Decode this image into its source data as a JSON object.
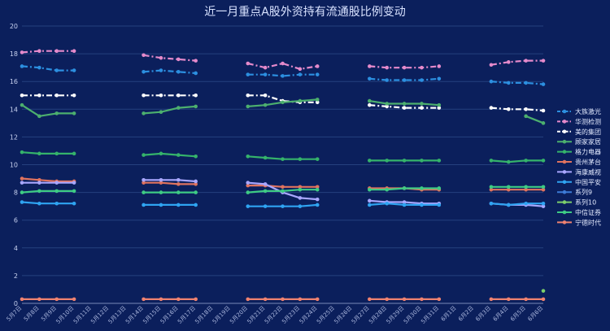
{
  "chart_data": {
    "type": "line",
    "title": "近一月重点A股外资持有流通股比例变动",
    "xlabel": "",
    "ylabel": "",
    "ylim": [
      0,
      20
    ],
    "y_ticks": [
      0,
      2,
      4,
      6,
      8,
      10,
      12,
      14,
      16,
      18,
      20
    ],
    "grid": true,
    "legend_position": "right",
    "x": [
      "5月7日",
      "5月8日",
      "5月9日",
      "5月10日",
      "5月11日",
      "5月12日",
      "5月13日",
      "5月14日",
      "5月15日",
      "5月16日",
      "5月17日",
      "5月18日",
      "5月19日",
      "5月20日",
      "5月21日",
      "5月22日",
      "5月23日",
      "5月24日",
      "5月25日",
      "5月26日",
      "5月27日",
      "5月28日",
      "5月29日",
      "5月30日",
      "5月31日",
      "6月1日",
      "6月2日",
      "6月3日",
      "6月4日",
      "6月5日",
      "6月6日"
    ],
    "series": [
      {
        "name": "大族激光",
        "color": "#2c8fe0",
        "dash": "dashdot",
        "values": [
          17.1,
          17.0,
          16.8,
          16.8,
          null,
          null,
          null,
          16.7,
          16.8,
          16.7,
          16.6,
          null,
          null,
          16.5,
          16.5,
          16.4,
          16.5,
          16.5,
          null,
          null,
          16.2,
          16.1,
          16.1,
          16.1,
          16.2,
          null,
          null,
          16.0,
          15.9,
          15.9,
          15.8
        ]
      },
      {
        "name": "华测检测",
        "color": "#e58acb",
        "dash": "dashdot",
        "values": [
          18.1,
          18.2,
          18.2,
          18.2,
          null,
          null,
          null,
          17.9,
          17.7,
          17.6,
          17.5,
          null,
          null,
          17.3,
          17.0,
          17.3,
          16.9,
          17.1,
          null,
          null,
          17.1,
          17.0,
          17.0,
          17.0,
          17.1,
          null,
          null,
          17.2,
          17.4,
          17.5,
          17.5
        ]
      },
      {
        "name": "美的集团",
        "color": "#ffffff",
        "dash": "dashdot",
        "values": [
          15.0,
          15.0,
          15.0,
          15.0,
          null,
          null,
          null,
          15.0,
          15.0,
          15.0,
          15.0,
          null,
          null,
          15.0,
          15.0,
          14.6,
          14.5,
          14.5,
          null,
          null,
          14.3,
          14.2,
          14.1,
          14.1,
          14.1,
          null,
          null,
          14.1,
          14.0,
          14.0,
          13.9
        ]
      },
      {
        "name": "顾家家居",
        "color": "#4caf6e",
        "dash": "solid",
        "values": [
          14.3,
          13.5,
          13.7,
          13.7,
          null,
          null,
          null,
          13.7,
          13.8,
          14.1,
          14.2,
          null,
          null,
          14.2,
          14.3,
          14.5,
          14.6,
          14.7,
          null,
          null,
          14.6,
          14.4,
          14.4,
          14.4,
          14.3,
          null,
          null,
          null,
          null,
          13.5,
          13.0
        ]
      },
      {
        "name": "格力电器",
        "color": "#35b36b",
        "dash": "solid",
        "values": [
          10.9,
          10.8,
          10.8,
          10.8,
          null,
          null,
          null,
          10.7,
          10.8,
          10.7,
          10.6,
          null,
          null,
          10.6,
          10.5,
          10.4,
          10.4,
          10.4,
          null,
          null,
          10.3,
          10.3,
          10.3,
          10.3,
          10.3,
          null,
          null,
          10.3,
          10.2,
          10.3,
          10.3
        ]
      },
      {
        "name": "贵州茅台",
        "color": "#e0735f",
        "dash": "solid",
        "values": [
          9.0,
          8.9,
          8.8,
          8.8,
          null,
          null,
          null,
          8.7,
          8.7,
          8.6,
          8.6,
          null,
          null,
          8.5,
          8.5,
          8.4,
          8.4,
          8.4,
          null,
          null,
          8.3,
          8.3,
          8.3,
          8.2,
          8.2,
          null,
          null,
          8.2,
          8.2,
          8.2,
          8.2
        ]
      },
      {
        "name": "海康威视",
        "color": "#a9a7ff",
        "dash": "solid",
        "values": [
          8.7,
          8.7,
          8.7,
          8.7,
          null,
          null,
          null,
          8.9,
          8.9,
          8.9,
          8.8,
          null,
          null,
          8.7,
          8.6,
          8.0,
          7.6,
          7.5,
          null,
          null,
          7.4,
          7.3,
          7.3,
          7.2,
          7.2,
          null,
          null,
          7.2,
          7.1,
          7.1,
          7.0
        ]
      },
      {
        "name": "中国平安",
        "color": "#2fa4f2",
        "dash": "solid",
        "values": [
          7.3,
          7.2,
          7.2,
          7.2,
          null,
          null,
          null,
          7.1,
          7.1,
          7.1,
          7.1,
          null,
          null,
          7.0,
          7.0,
          7.0,
          7.0,
          7.1,
          null,
          null,
          7.1,
          7.2,
          7.1,
          7.1,
          7.1,
          null,
          null,
          7.2,
          7.1,
          7.2,
          7.2
        ]
      },
      {
        "name": "系列9",
        "color": "#3d7bd6",
        "dash": "solid",
        "values": [
          null,
          null,
          null,
          null,
          null,
          null,
          null,
          null,
          null,
          null,
          null,
          null,
          null,
          null,
          null,
          null,
          null,
          null,
          null,
          null,
          null,
          null,
          null,
          null,
          null,
          null,
          null,
          null,
          null,
          null,
          null
        ]
      },
      {
        "name": "系列10",
        "color": "#7ccf6b",
        "dash": "solid",
        "values": [
          null,
          null,
          null,
          null,
          null,
          null,
          null,
          null,
          null,
          null,
          null,
          null,
          null,
          null,
          null,
          null,
          null,
          null,
          null,
          null,
          null,
          null,
          null,
          null,
          null,
          null,
          null,
          null,
          null,
          null,
          0.9
        ]
      },
      {
        "name": "中信证券",
        "color": "#3ecb84",
        "dash": "solid",
        "values": [
          8.0,
          8.1,
          8.1,
          8.1,
          null,
          null,
          null,
          8.0,
          8.0,
          8.0,
          8.0,
          null,
          null,
          8.0,
          8.1,
          8.1,
          8.2,
          8.2,
          null,
          null,
          8.2,
          8.2,
          8.3,
          8.3,
          8.3,
          null,
          null,
          8.4,
          8.4,
          8.4,
          8.4
        ]
      },
      {
        "name": "宁德时代",
        "color": "#ef8270",
        "dash": "solid",
        "values": [
          0.3,
          0.3,
          0.3,
          0.3,
          null,
          null,
          null,
          0.3,
          0.3,
          0.3,
          0.3,
          null,
          null,
          0.3,
          0.3,
          0.3,
          0.3,
          0.3,
          null,
          null,
          0.3,
          0.3,
          0.3,
          0.3,
          0.3,
          null,
          null,
          0.3,
          0.3,
          0.3,
          0.3
        ]
      }
    ]
  }
}
